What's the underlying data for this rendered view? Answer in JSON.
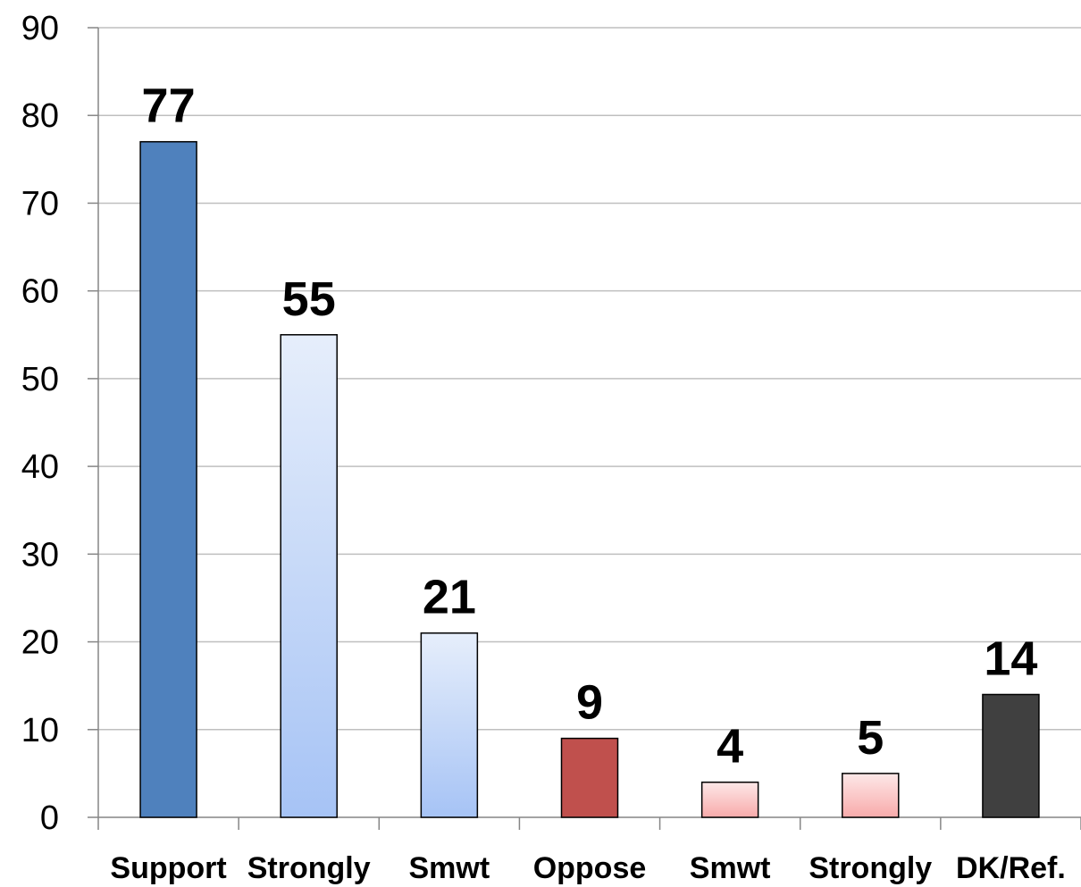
{
  "chart_data": {
    "type": "bar",
    "categories": [
      "Support",
      "Strongly",
      "Smwt",
      "Oppose",
      "Smwt",
      "Strongly",
      "DK/Ref."
    ],
    "values": [
      77,
      55,
      21,
      9,
      4,
      5,
      14
    ],
    "ylim": [
      0,
      90
    ],
    "yticks": [
      0,
      10,
      20,
      30,
      40,
      50,
      60,
      70,
      80,
      90
    ],
    "grid": true,
    "legend": "none",
    "title": "",
    "xlabel": "",
    "ylabel": "",
    "bar_styles": [
      "solid-blue",
      "gradient-blue",
      "gradient-blue",
      "solid-red",
      "gradient-pink",
      "gradient-pink",
      "solid-dark"
    ],
    "colors": {
      "solid-blue": "#4f81bd",
      "blue-light": "#e6eefb",
      "blue-mid": "#a6c3f5",
      "solid-red": "#c0504d",
      "pink-light": "#fde8e8",
      "pink-mid": "#f8aaaa",
      "solid-dark": "#404040",
      "grid": "#bfbfbf",
      "axis": "#868686"
    }
  }
}
